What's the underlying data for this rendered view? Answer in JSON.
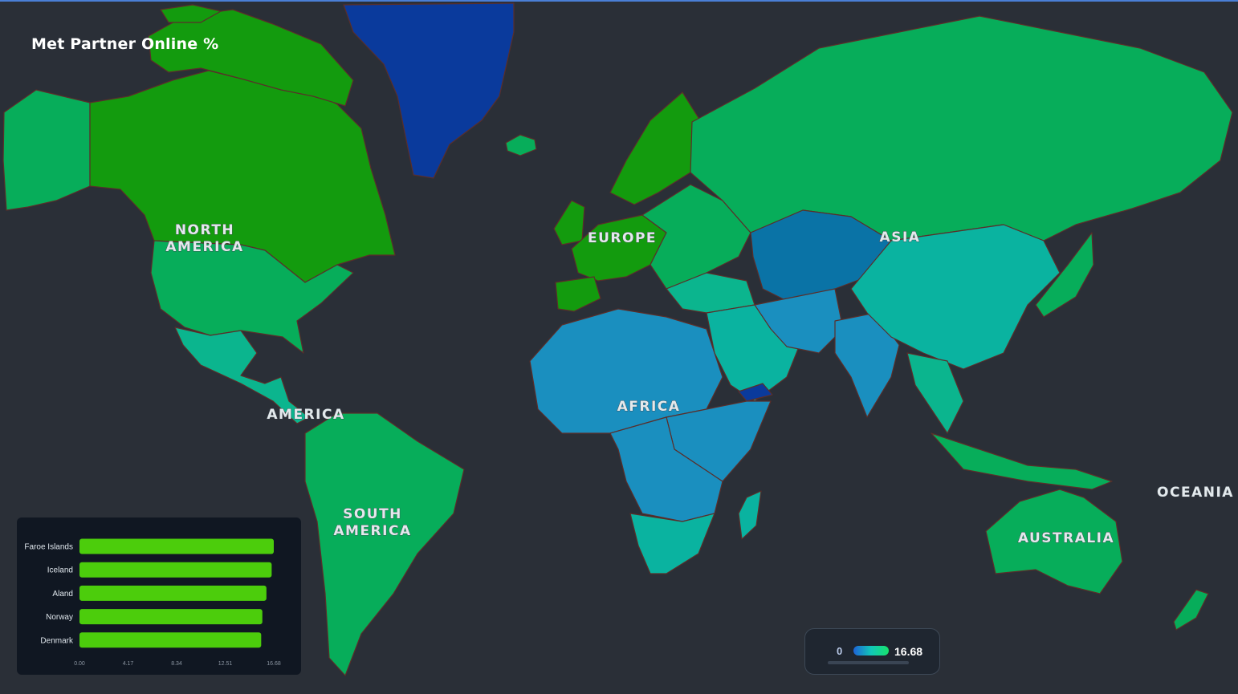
{
  "title": "Met Partner Online %",
  "regions": [
    "NORTH",
    "AMERICA",
    "AMERICA",
    "SOUTH",
    "AMERICA",
    "EUROPE",
    "AFRICA",
    "ASIA",
    "OCEANIA",
    "AUSTRALIA"
  ],
  "colors": {
    "background": "#2a2f37",
    "highest": "#139b0e",
    "high": "#07ad5a",
    "mid": "#0ab3a0",
    "low": "#1a8fbf",
    "lowest": "#0a3a9c",
    "bar": "#4ccd0c"
  },
  "chart_data": {
    "type": "bar",
    "orientation": "horizontal",
    "categories": [
      "Faroe Islands",
      "Iceland",
      "Aland",
      "Norway",
      "Denmark"
    ],
    "values": [
      16.68,
      16.5,
      16.05,
      15.7,
      15.6
    ],
    "xlim": [
      0,
      16.68
    ],
    "xticks": [
      "0.00",
      "4.17",
      "8.34",
      "12.51",
      "16.68"
    ]
  },
  "legend": {
    "min_label": "0",
    "max_label": "16.68"
  }
}
